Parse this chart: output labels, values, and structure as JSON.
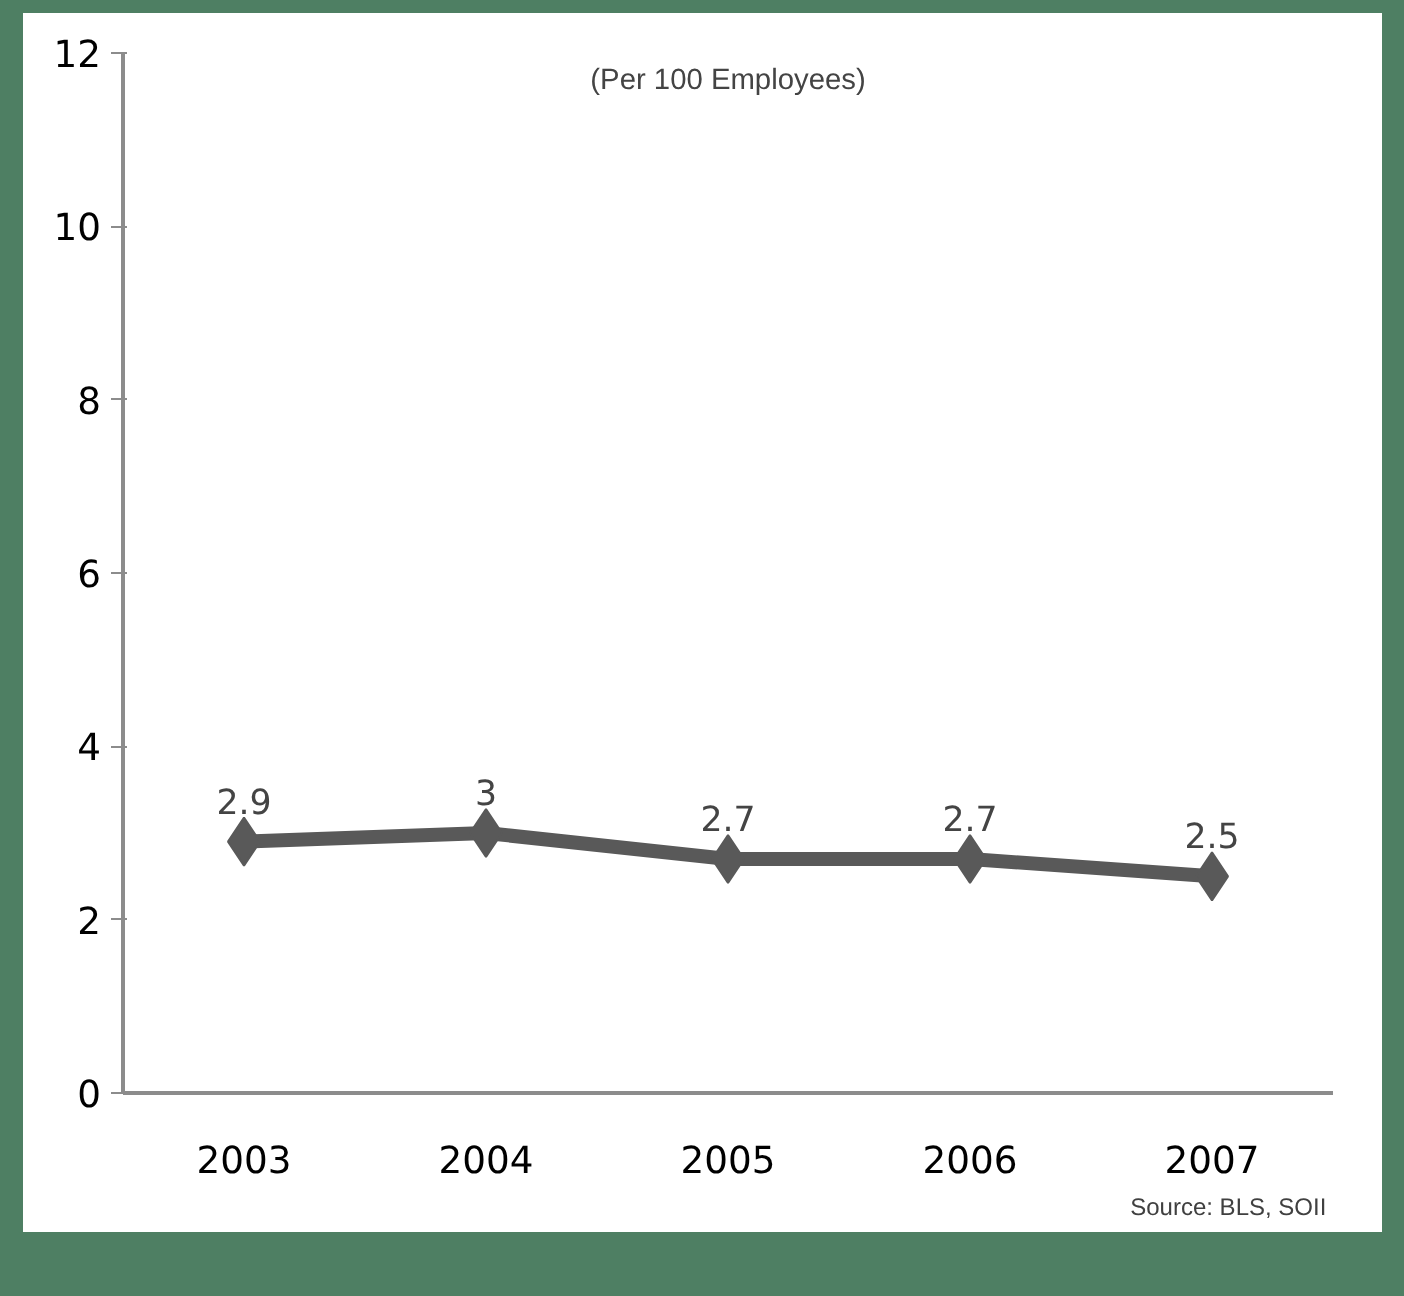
{
  "chart_data": {
    "type": "line",
    "subtitle": "(Per 100 Employees)",
    "categories": [
      "2003",
      "2004",
      "2005",
      "2006",
      "2007"
    ],
    "series": [
      {
        "color": "#595959",
        "values": [
          2.9,
          3,
          2.7,
          2.7,
          2.5
        ]
      }
    ],
    "ylim": [
      0,
      12
    ],
    "yticks": [
      0,
      2,
      4,
      6,
      8,
      10,
      12
    ],
    "grid": false,
    "marker": "diamond",
    "line_style": "solid",
    "data_labels": true,
    "annotations": [
      "Source:  BLS, SOII"
    ]
  }
}
